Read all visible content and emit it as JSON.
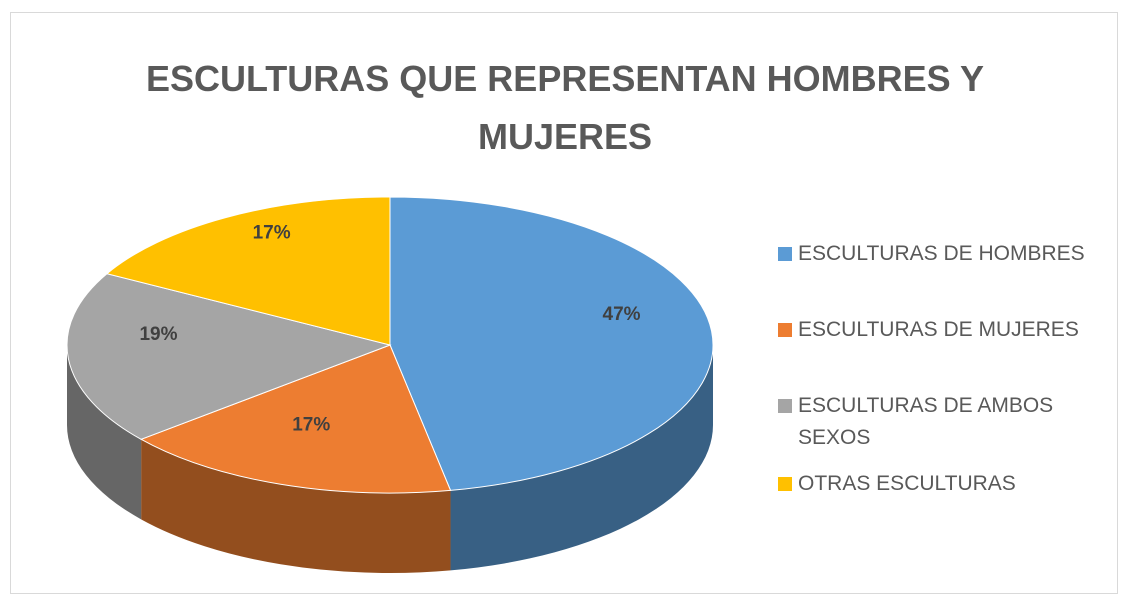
{
  "chart_data": {
    "type": "pie3d",
    "title": "ESCULTURAS QUE REPRESENTAN HOMBRES Y MUJERES",
    "categories": [
      "ESCULTURAS DE HOMBRES",
      "ESCULTURAS DE MUJERES",
      "ESCULTURAS DE AMBOS SEXOS",
      "OTRAS ESCULTURAS"
    ],
    "values": [
      47,
      17,
      19,
      17
    ],
    "value_labels": [
      "47%",
      "17%",
      "19%",
      "17%"
    ],
    "colors": [
      "#5b9bd5",
      "#ed7d31",
      "#a5a5a5",
      "#ffc000"
    ],
    "legend": "right"
  }
}
